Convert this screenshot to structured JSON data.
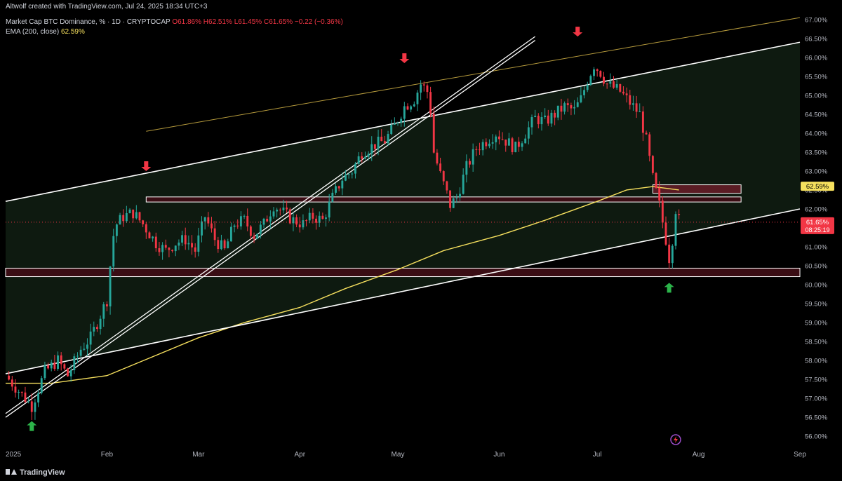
{
  "header": {
    "attribution": "Altwolf created with TradingView.com, Jul 24, 2025 18:34 UTC+3",
    "symbol": "Market Cap BTC Dominance, % · 1D · CRYPTOCAP",
    "open": "O61.86%",
    "high": "H62.51%",
    "low": "L61.45%",
    "close": "C61.65%",
    "change": "−0.22 (−0.36%)",
    "ema_label": "EMA (200, close)",
    "ema_value": "62.59%"
  },
  "footer": {
    "brand": "TradingView"
  },
  "colors": {
    "up": "#26a69a",
    "down": "#f23645",
    "ema": "#f6e05e",
    "trend": "#ffffff",
    "channel_top": "#b59a3c",
    "arrow_down": "#f23645",
    "arrow_up": "#2cb34a"
  },
  "chart_data": {
    "type": "candlestick",
    "ylim": [
      55.8,
      67.2
    ],
    "y_ticks": [
      "67.00%",
      "66.50%",
      "66.00%",
      "65.50%",
      "65.00%",
      "64.50%",
      "64.00%",
      "63.50%",
      "63.00%",
      "62.50%",
      "62.00%",
      "61.50%",
      "61.00%",
      "60.50%",
      "60.00%",
      "59.50%",
      "59.00%",
      "58.50%",
      "58.00%",
      "57.50%",
      "57.00%",
      "56.50%",
      "56.00%"
    ],
    "y_tick_values": [
      67.0,
      66.5,
      66.0,
      65.5,
      65.0,
      64.5,
      64.0,
      63.5,
      63.0,
      62.5,
      62.0,
      61.5,
      61.0,
      60.5,
      60.0,
      59.5,
      59.0,
      58.5,
      58.0,
      57.5,
      57.0,
      56.5,
      56.0
    ],
    "x_labels": [
      {
        "label": "2025",
        "date": "2025-01-01"
      },
      {
        "label": "Feb",
        "date": "2025-02-01"
      },
      {
        "label": "Mar",
        "date": "2025-03-01"
      },
      {
        "label": "Apr",
        "date": "2025-04-01"
      },
      {
        "label": "May",
        "date": "2025-05-01"
      },
      {
        "label": "Jun",
        "date": "2025-06-01"
      },
      {
        "label": "Jul",
        "date": "2025-07-01"
      },
      {
        "label": "Aug",
        "date": "2025-08-01"
      },
      {
        "label": "Sep",
        "date": "2025-09-01"
      }
    ],
    "x_start_date": "2025-01-01",
    "x_end_date": "2025-09-01",
    "price_key_points": [
      [
        "2025-01-01",
        57.6
      ],
      [
        "2025-01-06",
        57.1
      ],
      [
        "2025-01-09",
        56.8
      ],
      [
        "2025-01-13",
        57.7
      ],
      [
        "2025-01-17",
        58.0
      ],
      [
        "2025-01-20",
        57.6
      ],
      [
        "2025-01-24",
        58.3
      ],
      [
        "2025-01-27",
        58.6
      ],
      [
        "2025-01-30",
        59.2
      ],
      [
        "2025-02-01",
        59.6
      ],
      [
        "2025-02-02",
        60.5
      ],
      [
        "2025-02-03",
        61.3
      ],
      [
        "2025-02-04",
        61.6
      ],
      [
        "2025-02-06",
        61.8
      ],
      [
        "2025-02-09",
        61.9
      ],
      [
        "2025-02-12",
        61.6
      ],
      [
        "2025-02-16",
        61.1
      ],
      [
        "2025-02-19",
        60.9
      ],
      [
        "2025-02-22",
        61.1
      ],
      [
        "2025-02-25",
        61.2
      ],
      [
        "2025-02-28",
        60.9
      ],
      [
        "2025-03-03",
        61.8
      ],
      [
        "2025-03-06",
        61.2
      ],
      [
        "2025-03-09",
        60.9
      ],
      [
        "2025-03-12",
        61.6
      ],
      [
        "2025-03-15",
        61.7
      ],
      [
        "2025-03-18",
        61.3
      ],
      [
        "2025-03-21",
        61.6
      ],
      [
        "2025-03-24",
        62.1
      ],
      [
        "2025-03-27",
        61.9
      ],
      [
        "2025-03-30",
        61.7
      ],
      [
        "2025-04-02",
        61.6
      ],
      [
        "2025-04-05",
        61.8
      ],
      [
        "2025-04-08",
        61.7
      ],
      [
        "2025-04-11",
        62.3
      ],
      [
        "2025-04-14",
        62.8
      ],
      [
        "2025-04-17",
        63.0
      ],
      [
        "2025-04-20",
        63.5
      ],
      [
        "2025-04-24",
        63.7
      ],
      [
        "2025-04-27",
        63.8
      ],
      [
        "2025-04-30",
        64.2
      ],
      [
        "2025-05-03",
        64.7
      ],
      [
        "2025-05-06",
        64.9
      ],
      [
        "2025-05-08",
        65.3
      ],
      [
        "2025-05-10",
        65.1
      ],
      [
        "2025-05-11",
        64.6
      ],
      [
        "2025-05-12",
        63.5
      ],
      [
        "2025-05-14",
        62.9
      ],
      [
        "2025-05-16",
        62.4
      ],
      [
        "2025-05-17",
        62.1
      ],
      [
        "2025-05-19",
        62.3
      ],
      [
        "2025-05-22",
        63.1
      ],
      [
        "2025-05-25",
        63.6
      ],
      [
        "2025-05-28",
        63.8
      ],
      [
        "2025-05-31",
        64.0
      ],
      [
        "2025-06-03",
        63.8
      ],
      [
        "2025-06-06",
        63.6
      ],
      [
        "2025-06-09",
        64.0
      ],
      [
        "2025-06-12",
        64.4
      ],
      [
        "2025-06-15",
        64.3
      ],
      [
        "2025-06-18",
        64.5
      ],
      [
        "2025-06-21",
        64.7
      ],
      [
        "2025-06-24",
        64.6
      ],
      [
        "2025-06-26",
        64.9
      ],
      [
        "2025-06-28",
        65.4
      ],
      [
        "2025-06-30",
        65.8
      ],
      [
        "2025-07-02",
        65.6
      ],
      [
        "2025-07-04",
        65.3
      ],
      [
        "2025-07-06",
        65.2
      ],
      [
        "2025-07-08",
        65.1
      ],
      [
        "2025-07-10",
        64.9
      ],
      [
        "2025-07-12",
        64.7
      ],
      [
        "2025-07-14",
        64.5
      ],
      [
        "2025-07-16",
        63.8
      ],
      [
        "2025-07-18",
        62.8
      ],
      [
        "2025-07-20",
        62.1
      ],
      [
        "2025-07-22",
        61.2
      ],
      [
        "2025-07-23",
        60.7
      ],
      [
        "2025-07-24",
        61.2
      ],
      [
        "2025-07-25",
        62.0
      ],
      [
        "2025-07-26",
        61.7
      ]
    ],
    "ema_points": [
      [
        "2025-01-01",
        57.4
      ],
      [
        "2025-01-15",
        57.4
      ],
      [
        "2025-02-01",
        57.6
      ],
      [
        "2025-02-15",
        58.1
      ],
      [
        "2025-03-01",
        58.6
      ],
      [
        "2025-03-15",
        59.0
      ],
      [
        "2025-04-01",
        59.4
      ],
      [
        "2025-04-15",
        59.9
      ],
      [
        "2025-05-01",
        60.4
      ],
      [
        "2025-05-15",
        60.9
      ],
      [
        "2025-06-01",
        61.3
      ],
      [
        "2025-06-15",
        61.7
      ],
      [
        "2025-07-01",
        62.2
      ],
      [
        "2025-07-10",
        62.5
      ],
      [
        "2025-07-18",
        62.59
      ],
      [
        "2025-07-26",
        62.5
      ]
    ],
    "lines": [
      {
        "name": "channel-top",
        "style": "thin-gold",
        "from": [
          "2025-02-13",
          64.05
        ],
        "to": [
          "2025-09-01",
          67.05
        ]
      },
      {
        "name": "upper-trend",
        "style": "white",
        "from": [
          "2025-01-01",
          62.2
        ],
        "to": [
          "2025-09-01",
          66.4
        ]
      },
      {
        "name": "lower-trend",
        "style": "white",
        "from": [
          "2025-01-01",
          57.65
        ],
        "to": [
          "2025-09-01",
          62.0
        ]
      },
      {
        "name": "steep-trend-a",
        "style": "white-double",
        "from": [
          "2025-01-01",
          56.6
        ],
        "to": [
          "2025-06-12",
          66.55
        ]
      },
      {
        "name": "steep-trend-b",
        "style": "white-double",
        "from": [
          "2025-01-01",
          56.5
        ],
        "to": [
          "2025-06-12",
          66.45
        ]
      }
    ],
    "zones": [
      {
        "name": "support-zone",
        "low": 60.25,
        "high": 60.4,
        "from": "2025-01-01",
        "to": "2025-09-01"
      },
      {
        "name": "mid-line-zone",
        "low": 62.22,
        "high": 62.28,
        "from": "2025-02-13",
        "to": "2025-08-14"
      },
      {
        "name": "resistance-box",
        "low": 62.45,
        "high": 62.6,
        "from": "2025-07-18",
        "to": "2025-08-14"
      }
    ],
    "arrows": [
      {
        "dir": "down",
        "date": "2025-02-13",
        "value": 63.0
      },
      {
        "dir": "down",
        "date": "2025-05-03",
        "value": 65.85
      },
      {
        "dir": "down",
        "date": "2025-06-25",
        "value": 66.55
      },
      {
        "dir": "up",
        "date": "2025-01-09",
        "value": 56.4
      },
      {
        "dir": "up",
        "date": "2025-07-23",
        "value": 60.05
      }
    ],
    "price_marks": [
      {
        "name": "ema-price-label",
        "text": "62.59%",
        "value": 62.59,
        "bg": "#f6e05e",
        "fg": "#000000"
      },
      {
        "name": "last-price-label",
        "text": "61.65%",
        "sub": "08:25:19",
        "value": 61.65,
        "bg": "#f23645",
        "fg": "#ffffff"
      }
    ]
  }
}
